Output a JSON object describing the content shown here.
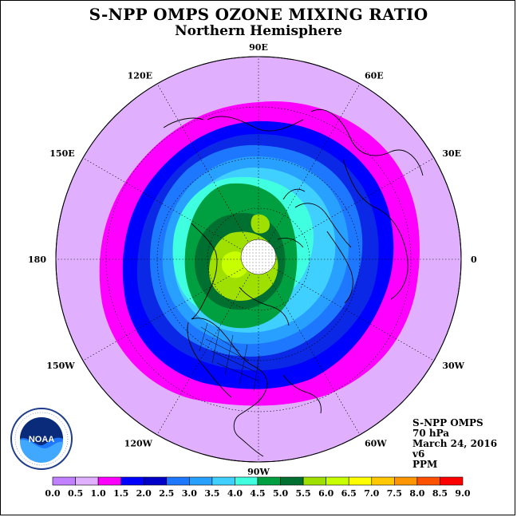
{
  "title": "S-NPP OMPS OZONE MIXING RATIO",
  "subtitle": "Northern Hemisphere",
  "info": {
    "instrument": "S-NPP OMPS",
    "level": "70 hPa",
    "date": "March 24, 2016",
    "version": "v6",
    "units": "PPM"
  },
  "logo": {
    "text": "NOAA",
    "ring_text": "NATIONAL OCEANIC AND ATMOSPHERIC ADMINISTRATION · U.S. DEPARTMENT OF COMMERCE"
  },
  "longitude_labels": [
    {
      "text": "90E",
      "lon": 90
    },
    {
      "text": "120E",
      "lon": 120
    },
    {
      "text": "60E",
      "lon": 60
    },
    {
      "text": "150E",
      "lon": 150
    },
    {
      "text": "30E",
      "lon": 30
    },
    {
      "text": "180",
      "lon": 180
    },
    {
      "text": "0",
      "lon": 0
    },
    {
      "text": "150W",
      "lon": -150
    },
    {
      "text": "30W",
      "lon": -30
    },
    {
      "text": "120W",
      "lon": -120
    },
    {
      "text": "60W",
      "lon": -60
    },
    {
      "text": "90W",
      "lon": -90
    }
  ],
  "colorbar": {
    "ticks": [
      "0.0",
      "0.5",
      "1.0",
      "1.5",
      "2.0",
      "2.5",
      "3.0",
      "3.5",
      "4.0",
      "4.5",
      "5.0",
      "5.5",
      "6.0",
      "6.5",
      "7.0",
      "7.5",
      "8.0",
      "8.5",
      "9.0"
    ],
    "colors": [
      "#c080ff",
      "#e0b0ff",
      "#ff00ff",
      "#0000ff",
      "#0000c8",
      "#1e78ff",
      "#28a0ff",
      "#40d0ff",
      "#40ffe0",
      "#00a040",
      "#007030",
      "#a0e000",
      "#c8ff00",
      "#ffff00",
      "#ffc800",
      "#ff9600",
      "#ff5000",
      "#ff0000",
      "#8b5a3c"
    ]
  },
  "palette": {
    "background_disk": "#e0b0ff",
    "pink": "#ff00ff",
    "blue": "#0000ff",
    "dblue": "#0a28e6",
    "mblue": "#1e78ff",
    "lblue": "#28a0ff",
    "sky": "#40d0ff",
    "aqua": "#40ffe0",
    "green": "#00a040",
    "dgreen": "#007030",
    "lime": "#a0e000",
    "yellowgreen": "#c8ff00"
  }
}
